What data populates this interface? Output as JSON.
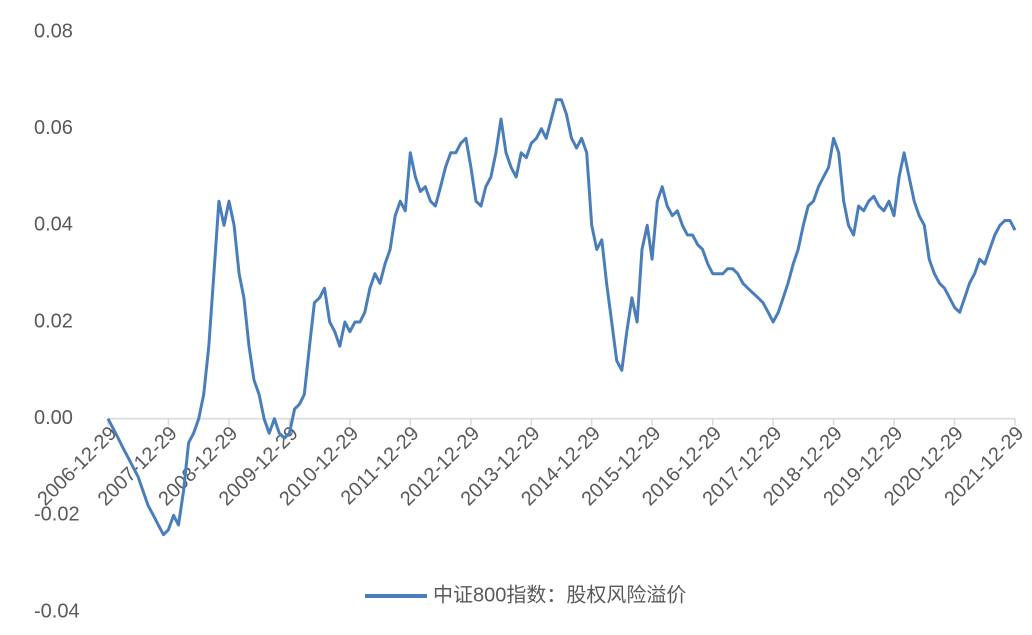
{
  "chart_data": {
    "type": "line",
    "x": [
      "2006-12-29",
      "2007-01-29",
      "2007-02-28",
      "2007-03-29",
      "2007-04-29",
      "2007-05-29",
      "2007-06-29",
      "2007-07-29",
      "2007-08-29",
      "2007-09-29",
      "2007-10-29",
      "2007-11-29",
      "2007-12-29",
      "2008-01-29",
      "2008-02-28",
      "2008-03-29",
      "2008-04-29",
      "2008-05-29",
      "2008-06-29",
      "2008-07-29",
      "2008-08-29",
      "2008-09-29",
      "2008-10-29",
      "2008-11-29",
      "2008-12-29",
      "2009-01-29",
      "2009-02-28",
      "2009-03-29",
      "2009-04-29",
      "2009-05-29",
      "2009-06-29",
      "2009-07-29",
      "2009-08-29",
      "2009-09-29",
      "2009-10-29",
      "2009-11-29",
      "2009-12-29",
      "2010-01-29",
      "2010-02-28",
      "2010-03-29",
      "2010-04-29",
      "2010-05-29",
      "2010-06-29",
      "2010-07-29",
      "2010-08-29",
      "2010-09-29",
      "2010-10-29",
      "2010-11-29",
      "2010-12-29",
      "2011-01-29",
      "2011-02-28",
      "2011-03-29",
      "2011-04-29",
      "2011-05-29",
      "2011-06-29",
      "2011-07-29",
      "2011-08-29",
      "2011-09-29",
      "2011-10-29",
      "2011-11-29",
      "2011-12-29",
      "2012-01-29",
      "2012-02-28",
      "2012-03-29",
      "2012-04-29",
      "2012-05-29",
      "2012-06-29",
      "2012-07-29",
      "2012-08-29",
      "2012-09-29",
      "2012-10-29",
      "2012-11-29",
      "2012-12-29",
      "2013-01-29",
      "2013-02-28",
      "2013-03-29",
      "2013-04-29",
      "2013-05-29",
      "2013-06-29",
      "2013-07-29",
      "2013-08-29",
      "2013-09-29",
      "2013-10-29",
      "2013-11-29",
      "2013-12-29",
      "2014-01-29",
      "2014-02-28",
      "2014-03-29",
      "2014-04-29",
      "2014-05-29",
      "2014-06-29",
      "2014-07-29",
      "2014-08-29",
      "2014-09-29",
      "2014-10-29",
      "2014-11-29",
      "2014-12-29",
      "2015-01-29",
      "2015-02-28",
      "2015-03-29",
      "2015-04-29",
      "2015-05-29",
      "2015-06-29",
      "2015-07-29",
      "2015-08-29",
      "2015-09-29",
      "2015-10-29",
      "2015-11-29",
      "2015-12-29",
      "2016-01-29",
      "2016-02-28",
      "2016-03-29",
      "2016-04-29",
      "2016-05-29",
      "2016-06-29",
      "2016-07-29",
      "2016-08-29",
      "2016-09-29",
      "2016-10-29",
      "2016-11-29",
      "2016-12-29",
      "2017-01-29",
      "2017-02-28",
      "2017-03-29",
      "2017-04-29",
      "2017-05-29",
      "2017-06-29",
      "2017-07-29",
      "2017-08-29",
      "2017-09-29",
      "2017-10-29",
      "2017-11-29",
      "2017-12-29",
      "2018-01-29",
      "2018-02-28",
      "2018-03-29",
      "2018-04-29",
      "2018-05-29",
      "2018-06-29",
      "2018-07-29",
      "2018-08-29",
      "2018-09-29",
      "2018-10-29",
      "2018-11-29",
      "2018-12-29",
      "2019-01-29",
      "2019-02-28",
      "2019-03-29",
      "2019-04-29",
      "2019-05-29",
      "2019-06-29",
      "2019-07-29",
      "2019-08-29",
      "2019-09-29",
      "2019-10-29",
      "2019-11-29",
      "2019-12-29",
      "2020-01-29",
      "2020-02-28",
      "2020-03-29",
      "2020-04-29",
      "2020-05-29",
      "2020-06-29",
      "2020-07-29",
      "2020-08-29",
      "2020-09-29",
      "2020-10-29",
      "2020-11-29",
      "2020-12-29",
      "2021-01-29",
      "2021-02-28",
      "2021-03-29",
      "2021-04-29",
      "2021-05-29",
      "2021-06-29",
      "2021-07-29",
      "2021-08-29",
      "2021-09-29",
      "2021-10-29",
      "2021-11-29",
      "2021-12-29"
    ],
    "series": [
      {
        "name": "中证800指数：股权风险溢价",
        "color": "#4a7ebb",
        "values": [
          0.0,
          -0.002,
          -0.004,
          -0.006,
          -0.008,
          -0.01,
          -0.012,
          -0.015,
          -0.018,
          -0.02,
          -0.022,
          -0.024,
          -0.023,
          -0.02,
          -0.022,
          -0.015,
          -0.005,
          -0.003,
          0.0,
          0.005,
          0.015,
          0.03,
          0.045,
          0.04,
          0.045,
          0.04,
          0.03,
          0.025,
          0.015,
          0.008,
          0.005,
          0.0,
          -0.003,
          0.0,
          -0.003,
          -0.004,
          -0.003,
          0.002,
          0.003,
          0.005,
          0.015,
          0.024,
          0.025,
          0.027,
          0.02,
          0.018,
          0.015,
          0.02,
          0.018,
          0.02,
          0.02,
          0.022,
          0.027,
          0.03,
          0.028,
          0.032,
          0.035,
          0.042,
          0.045,
          0.043,
          0.055,
          0.05,
          0.047,
          0.048,
          0.045,
          0.044,
          0.048,
          0.052,
          0.055,
          0.055,
          0.057,
          0.058,
          0.052,
          0.045,
          0.044,
          0.048,
          0.05,
          0.055,
          0.062,
          0.055,
          0.052,
          0.05,
          0.055,
          0.054,
          0.057,
          0.058,
          0.06,
          0.058,
          0.062,
          0.066,
          0.066,
          0.063,
          0.058,
          0.056,
          0.058,
          0.055,
          0.04,
          0.035,
          0.037,
          0.028,
          0.02,
          0.012,
          0.01,
          0.018,
          0.025,
          0.02,
          0.035,
          0.04,
          0.033,
          0.045,
          0.048,
          0.044,
          0.042,
          0.043,
          0.04,
          0.038,
          0.038,
          0.036,
          0.035,
          0.032,
          0.03,
          0.03,
          0.03,
          0.031,
          0.031,
          0.03,
          0.028,
          0.027,
          0.026,
          0.025,
          0.024,
          0.022,
          0.02,
          0.022,
          0.025,
          0.028,
          0.032,
          0.035,
          0.04,
          0.044,
          0.045,
          0.048,
          0.05,
          0.052,
          0.058,
          0.055,
          0.045,
          0.04,
          0.038,
          0.044,
          0.043,
          0.045,
          0.046,
          0.044,
          0.043,
          0.045,
          0.042,
          0.05,
          0.055,
          0.05,
          0.045,
          0.042,
          0.04,
          0.033,
          0.03,
          0.028,
          0.027,
          0.025,
          0.023,
          0.022,
          0.025,
          0.028,
          0.03,
          0.033,
          0.032,
          0.035,
          0.038,
          0.04,
          0.041,
          0.041,
          0.039
        ]
      }
    ],
    "xlim": [
      "2006-12-29",
      "2021-12-29"
    ],
    "xticks": [
      "2006-12-29",
      "2007-12-29",
      "2008-12-29",
      "2009-12-29",
      "2010-12-29",
      "2011-12-29",
      "2012-12-29",
      "2013-12-29",
      "2014-12-29",
      "2015-12-29",
      "2016-12-29",
      "2017-12-29",
      "2018-12-29",
      "2019-12-29",
      "2020-12-29",
      "2021-12-29"
    ],
    "ylim": [
      -0.04,
      0.08
    ],
    "yticks": [
      {
        "value": 0.08,
        "label": "0.08"
      },
      {
        "value": 0.06,
        "label": "0.06"
      },
      {
        "value": 0.04,
        "label": "0.04"
      },
      {
        "value": 0.02,
        "label": "0.02"
      },
      {
        "value": 0,
        "label": "0.00"
      },
      {
        "value": -0.02,
        "label": "-0.02"
      },
      {
        "value": -0.04,
        "label": "-0.04"
      }
    ],
    "grid": false,
    "legend": "bottom"
  }
}
